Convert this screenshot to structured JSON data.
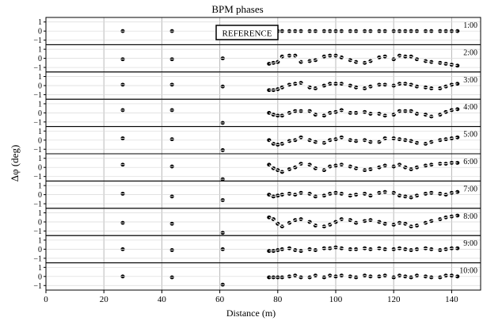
{
  "chart_data": {
    "type": "scatter",
    "title": "BPM phases",
    "xlabel": "Distance (m)",
    "ylabel": "Δφ (deg)",
    "xlim": [
      0,
      150
    ],
    "ylim": [
      -1.5,
      1.5
    ],
    "x_ticks": [
      "0",
      "20",
      "40",
      "60",
      "80",
      "100",
      "120",
      "140"
    ],
    "y_ticks": [
      "−1",
      "0",
      "1"
    ],
    "reference_label": "REFERENCE",
    "grid": true,
    "bpm_positions": [
      26.5,
      43.5,
      61,
      77,
      78.5,
      80,
      81.5,
      84,
      86,
      88,
      91,
      93,
      96,
      98,
      100,
      102,
      105,
      107,
      110,
      112,
      115,
      117,
      120,
      122,
      124,
      126,
      128,
      131,
      133,
      136,
      138,
      140,
      142
    ],
    "series": [
      {
        "name": "1:00",
        "values": [
          0.0,
          0.0,
          null,
          0.0,
          0.0,
          0.0,
          0.0,
          0.0,
          0.0,
          0.0,
          0.0,
          0.0,
          0.0,
          0.0,
          0.0,
          0.0,
          0.0,
          0.0,
          0.0,
          0.0,
          0.0,
          0.0,
          0.0,
          0.0,
          0.0,
          0.0,
          0.0,
          0.0,
          0.0,
          0.0,
          0.0,
          0.0,
          0.0
        ]
      },
      {
        "name": "2:00",
        "values": [
          -0.1,
          -0.1,
          0.0,
          -0.6,
          -0.5,
          -0.4,
          0.2,
          0.3,
          0.3,
          -0.4,
          -0.3,
          -0.2,
          0.2,
          0.3,
          0.3,
          0.1,
          -0.2,
          -0.4,
          -0.5,
          -0.3,
          0.1,
          0.2,
          -0.1,
          0.3,
          0.2,
          0.2,
          -0.1,
          -0.3,
          -0.4,
          -0.5,
          -0.6,
          -0.7,
          -0.8
        ]
      },
      {
        "name": "3:00",
        "values": [
          0.1,
          0.1,
          -0.1,
          -0.5,
          -0.5,
          -0.4,
          -0.2,
          0.1,
          0.2,
          0.3,
          -0.2,
          -0.3,
          0.0,
          0.2,
          0.2,
          0.2,
          0.0,
          -0.2,
          -0.3,
          -0.1,
          0.1,
          0.1,
          0.0,
          0.2,
          0.2,
          0.1,
          -0.1,
          -0.2,
          -0.3,
          -0.3,
          -0.1,
          0.1,
          0.2
        ]
      },
      {
        "name": "4:00",
        "values": [
          0.3,
          0.3,
          -1.1,
          0.0,
          -0.2,
          -0.3,
          -0.3,
          0.0,
          0.2,
          0.2,
          0.2,
          -0.2,
          -0.3,
          0.0,
          0.1,
          0.3,
          0.0,
          0.0,
          0.1,
          -0.1,
          -0.1,
          -0.3,
          -0.2,
          0.2,
          0.2,
          0.2,
          -0.1,
          -0.2,
          -0.4,
          -0.2,
          0.1,
          0.3,
          0.4
        ]
      },
      {
        "name": "5:00",
        "values": [
          0.2,
          0.1,
          -1.1,
          0.0,
          -0.4,
          -0.5,
          -0.4,
          -0.1,
          0.0,
          0.3,
          0.0,
          -0.2,
          -0.3,
          0.0,
          0.1,
          0.3,
          0.0,
          -0.1,
          0.0,
          -0.2,
          -0.2,
          0.2,
          0.2,
          0.1,
          0.0,
          -0.1,
          -0.3,
          -0.4,
          -0.2,
          0.0,
          0.1,
          0.2,
          0.3
        ]
      },
      {
        "name": "6:00",
        "values": [
          0.3,
          0.1,
          -1.3,
          0.3,
          -0.1,
          -0.3,
          -0.5,
          -0.2,
          0.0,
          0.4,
          0.3,
          -0.1,
          -0.3,
          0.1,
          0.2,
          0.3,
          0.1,
          -0.1,
          -0.3,
          -0.2,
          0.0,
          0.2,
          0.1,
          0.3,
          0.0,
          -0.2,
          0.0,
          0.2,
          0.3,
          0.4,
          0.4,
          0.5,
          0.5
        ]
      },
      {
        "name": "7:00",
        "values": [
          0.1,
          -0.2,
          -0.6,
          0.0,
          -0.2,
          -0.1,
          0.0,
          0.1,
          0.0,
          0.2,
          0.1,
          -0.2,
          -0.1,
          0.1,
          0.2,
          0.1,
          -0.1,
          0.0,
          0.1,
          -0.1,
          0.2,
          0.3,
          0.2,
          -0.1,
          -0.2,
          -0.3,
          -0.1,
          0.1,
          0.2,
          0.1,
          0.0,
          0.2,
          0.3
        ]
      },
      {
        "name": "8:00",
        "values": [
          -0.1,
          -0.2,
          -1.2,
          0.5,
          0.3,
          -0.2,
          -0.5,
          -0.1,
          0.2,
          0.3,
          0.0,
          -0.4,
          -0.5,
          -0.3,
          0.0,
          0.3,
          0.2,
          -0.1,
          0.1,
          0.2,
          0.0,
          -0.2,
          -0.3,
          -0.1,
          -0.2,
          -0.5,
          -0.4,
          -0.1,
          0.1,
          0.3,
          0.5,
          0.6,
          0.7
        ]
      },
      {
        "name": "9:00",
        "values": [
          0.0,
          -0.1,
          0.0,
          -0.2,
          -0.2,
          -0.1,
          0.0,
          0.1,
          -0.1,
          -0.2,
          0.0,
          -0.1,
          0.1,
          0.1,
          0.2,
          0.1,
          0.0,
          0.0,
          0.1,
          0.0,
          0.1,
          0.0,
          0.0,
          0.1,
          0.0,
          -0.1,
          0.0,
          0.1,
          0.0,
          -0.1,
          0.0,
          0.1,
          0.1
        ]
      },
      {
        "name": "10:00",
        "values": [
          0.0,
          -0.1,
          -0.9,
          -0.1,
          -0.1,
          -0.1,
          -0.1,
          0.0,
          0.1,
          -0.1,
          -0.1,
          0.1,
          -0.1,
          0.1,
          0.0,
          0.1,
          0.0,
          -0.1,
          0.1,
          0.0,
          0.0,
          0.1,
          -0.1,
          0.1,
          0.0,
          -0.1,
          0.1,
          0.0,
          -0.1,
          -0.1,
          0.1,
          0.1,
          0.0
        ]
      }
    ]
  }
}
